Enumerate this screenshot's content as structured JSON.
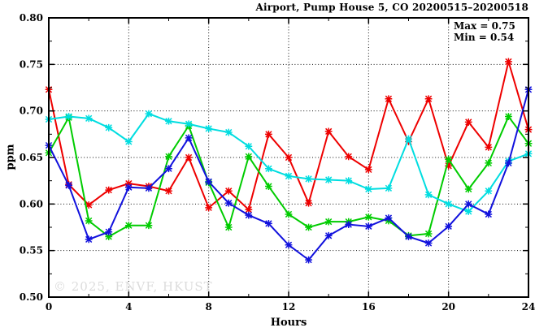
{
  "chart_data": {
    "type": "line",
    "title": "Airport, Pump House 5, CO 20200515–20200518",
    "watermark": "© 2025, ENVF, HKUST",
    "annotations": {
      "max_label": "Max = 0.75",
      "min_label": "Min = 0.54"
    },
    "x_axis": {
      "label": "Hours",
      "min": 0,
      "max": 24,
      "major_tick_values": [
        0,
        4,
        8,
        12,
        16,
        20,
        24
      ],
      "major_tick_labels": [
        "0",
        "4",
        "8",
        "12",
        "16",
        "20",
        "24"
      ],
      "minor_step": 2,
      "grid_at": [
        4,
        8,
        12,
        16,
        20
      ]
    },
    "y_axis": {
      "label": "ppm",
      "min": 0.5,
      "max": 0.8,
      "major_tick_values": [
        0.5,
        0.55,
        0.6,
        0.65,
        0.7,
        0.75,
        0.8
      ],
      "major_tick_labels": [
        "0.50",
        "0.55",
        "0.60",
        "0.65",
        "0.70",
        "0.75",
        "0.80"
      ],
      "minor_step": 0.025,
      "grid_at": [
        0.55,
        0.6,
        0.65,
        0.7,
        0.75
      ]
    },
    "x_hours": [
      0,
      1,
      2,
      3,
      4,
      5,
      6,
      7,
      8,
      9,
      10,
      11,
      12,
      13,
      14,
      15,
      16,
      17,
      18,
      19,
      20,
      21,
      22,
      23,
      24
    ],
    "series": [
      {
        "name": "red-series",
        "color": "#ee0000",
        "values": [
          0.723,
          0.621,
          0.599,
          0.615,
          0.622,
          0.619,
          0.614,
          0.65,
          0.596,
          0.614,
          0.594,
          0.675,
          0.65,
          0.601,
          0.678,
          0.651,
          0.637,
          0.713,
          0.667,
          0.713,
          0.641,
          0.688,
          0.661,
          0.753,
          0.68
        ]
      },
      {
        "name": "green-series",
        "color": "#00cc00",
        "values": [
          0.655,
          0.693,
          0.582,
          0.565,
          0.577,
          0.577,
          0.651,
          0.684,
          0.623,
          0.575,
          0.651,
          0.619,
          0.589,
          0.575,
          0.581,
          0.581,
          0.586,
          0.582,
          0.566,
          0.568,
          0.648,
          0.616,
          0.644,
          0.694,
          0.665
        ]
      },
      {
        "name": "cyan-series",
        "color": "#00dde0",
        "values": [
          0.691,
          0.694,
          0.692,
          0.682,
          0.667,
          0.697,
          0.689,
          0.686,
          0.681,
          0.677,
          0.662,
          0.638,
          0.63,
          0.627,
          0.626,
          0.625,
          0.616,
          0.617,
          0.67,
          0.61,
          0.6,
          0.592,
          0.614,
          0.646,
          0.654
        ]
      },
      {
        "name": "blue-series",
        "color": "#1111dd",
        "values": [
          0.663,
          0.62,
          0.562,
          0.57,
          0.618,
          0.617,
          0.638,
          0.671,
          0.624,
          0.601,
          0.588,
          0.579,
          0.556,
          0.54,
          0.566,
          0.578,
          0.576,
          0.585,
          0.565,
          0.558,
          0.576,
          0.6,
          0.589,
          0.644,
          0.723
        ]
      }
    ],
    "legend": "none",
    "grid": "dotted"
  }
}
